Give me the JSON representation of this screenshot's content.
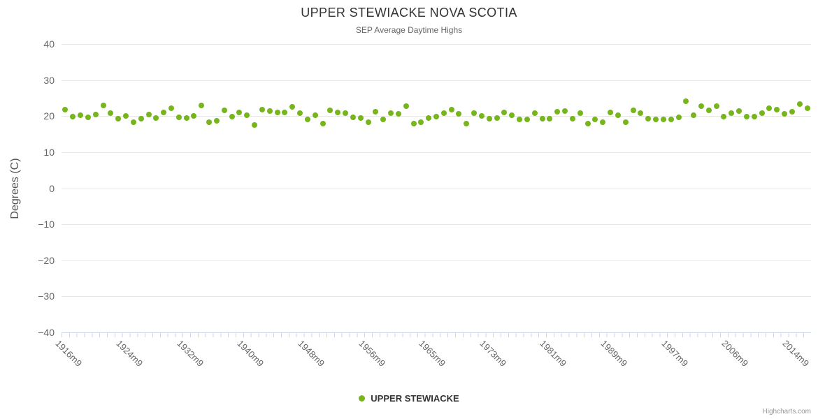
{
  "header": {
    "title": "UPPER STEWIACKE NOVA SCOTIA",
    "subtitle": "SEP Average Daytime Highs"
  },
  "legend": {
    "series_label": "UPPER STEWIACKE"
  },
  "credits": {
    "label": "Highcharts.com"
  },
  "colors": {
    "point": "#76b51b",
    "grid": "#e6e6e6",
    "axis": "#ccd6eb",
    "title_text": "#333333",
    "muted_text": "#666666"
  },
  "chart_data": {
    "type": "scatter",
    "title": "UPPER STEWIACKE NOVA SCOTIA",
    "subtitle": "SEP Average Daytime Highs",
    "ylabel": "Degrees (C)",
    "xlabel": "",
    "ylim": [
      -40,
      40
    ],
    "yticks": [
      40,
      30,
      20,
      10,
      0,
      -10,
      -20,
      -30,
      -40
    ],
    "grid": true,
    "legend_position": "bottom",
    "x_tick_label_step": 8,
    "series_name": "UPPER STEWIACKE",
    "categories": [
      "1916m9",
      "1917m9",
      "1918m9",
      "1919m9",
      "1920m9",
      "1921m9",
      "1922m9",
      "1923m9",
      "1924m9",
      "1925m9",
      "1926m9",
      "1927m9",
      "1928m9",
      "1929m9",
      "1930m9",
      "1931m9",
      "1932m9",
      "1933m9",
      "1934m9",
      "1935m9",
      "1936m9",
      "1937m9",
      "1938m9",
      "1939m9",
      "1940m9",
      "1941m9",
      "1942m9",
      "1943m9",
      "1944m9",
      "1945m9",
      "1946m9",
      "1947m9",
      "1948m9",
      "1949m9",
      "1950m9",
      "1951m9",
      "1952m9",
      "1953m9",
      "1954m9",
      "1955m9",
      "1956m9",
      "1958m9",
      "1959m9",
      "1960m9",
      "1961m9",
      "1962m9",
      "1963m9",
      "1964m9",
      "1965m9",
      "1966m9",
      "1967m9",
      "1968m9",
      "1969m9",
      "1970m9",
      "1971m9",
      "1972m9",
      "1973m9",
      "1974m9",
      "1975m9",
      "1976m9",
      "1977m9",
      "1978m9",
      "1979m9",
      "1980m9",
      "1981m9",
      "1982m9",
      "1983m9",
      "1984m9",
      "1985m9",
      "1986m9",
      "1987m9",
      "1988m9",
      "1989m9",
      "1990m9",
      "1991m9",
      "1992m9",
      "1993m9",
      "1994m9",
      "1995m9",
      "1996m9",
      "1997m9",
      "1999m9",
      "2000m9",
      "2001m9",
      "2002m9",
      "2003m9",
      "2004m9",
      "2005m9",
      "2006m9",
      "2007m9",
      "2008m9",
      "2009m9",
      "2010m9",
      "2011m9",
      "2012m9",
      "2013m9",
      "2014m9",
      "2015m9",
      "2016m9"
    ],
    "values": [
      21.8,
      19.8,
      20.2,
      19.7,
      20.5,
      23.0,
      20.9,
      19.3,
      20.0,
      18.4,
      19.3,
      20.5,
      19.5,
      21.1,
      22.2,
      19.7,
      19.5,
      20.0,
      22.9,
      18.4,
      18.6,
      21.6,
      19.8,
      21.0,
      20.3,
      17.6,
      21.7,
      21.5,
      21.1,
      21.1,
      22.6,
      20.9,
      19.1,
      20.2,
      17.9,
      21.6,
      21.1,
      20.9,
      19.7,
      19.4,
      18.4,
      21.3,
      19.1,
      20.9,
      20.6,
      22.7,
      18.0,
      18.4,
      19.5,
      19.8,
      20.9,
      21.7,
      20.6,
      18.0,
      20.9,
      20.0,
      19.3,
      19.5,
      21.1,
      20.3,
      19.0,
      19.1,
      20.8,
      19.2,
      19.3,
      21.3,
      21.5,
      19.2,
      20.9,
      17.9,
      19.1,
      18.4,
      21.1,
      20.2,
      18.4,
      21.6,
      20.9,
      19.3,
      19.1,
      19.0,
      19.1,
      19.7,
      24.2,
      20.3,
      22.8,
      21.6,
      22.7,
      19.8,
      20.9,
      21.5,
      19.8,
      19.8,
      20.9,
      22.1,
      21.7,
      20.6,
      21.3,
      23.4,
      22.2
    ]
  }
}
